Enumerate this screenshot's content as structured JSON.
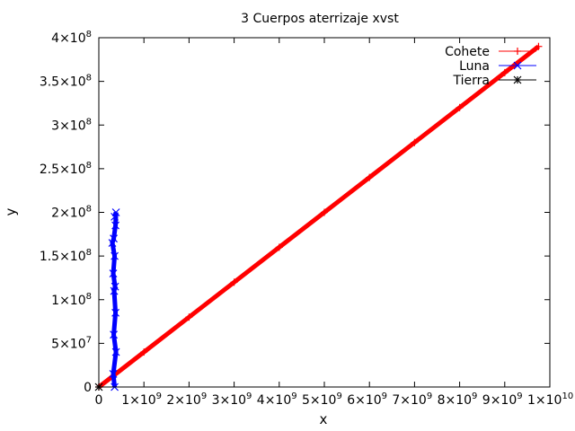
{
  "chart_data": {
    "type": "line",
    "title": "3 Cuerpos aterrizaje xvst",
    "xlabel": "x",
    "ylabel": "y",
    "xlim": [
      0,
      10000000000
    ],
    "ylim": [
      0,
      400000000
    ],
    "grid": false,
    "legend_position": "top-right",
    "x_ticks": [
      {
        "value": 0,
        "base": "0",
        "exp": ""
      },
      {
        "value": 1000000000,
        "base": "1×10",
        "exp": "9"
      },
      {
        "value": 2000000000,
        "base": "2×10",
        "exp": "9"
      },
      {
        "value": 3000000000,
        "base": "3×10",
        "exp": "9"
      },
      {
        "value": 4000000000,
        "base": "4×10",
        "exp": "9"
      },
      {
        "value": 5000000000,
        "base": "5×10",
        "exp": "9"
      },
      {
        "value": 6000000000,
        "base": "6×10",
        "exp": "9"
      },
      {
        "value": 7000000000,
        "base": "7×10",
        "exp": "9"
      },
      {
        "value": 8000000000,
        "base": "8×10",
        "exp": "9"
      },
      {
        "value": 9000000000,
        "base": "9×10",
        "exp": "9"
      },
      {
        "value": 10000000000,
        "base": "1×10",
        "exp": "10"
      }
    ],
    "y_ticks": [
      {
        "value": 0,
        "base": "0",
        "exp": ""
      },
      {
        "value": 50000000,
        "base": "5×10",
        "exp": "7"
      },
      {
        "value": 100000000,
        "base": "1×10",
        "exp": "8"
      },
      {
        "value": 150000000,
        "base": "1.5×10",
        "exp": "8"
      },
      {
        "value": 200000000,
        "base": "2×10",
        "exp": "8"
      },
      {
        "value": 250000000,
        "base": "2.5×10",
        "exp": "8"
      },
      {
        "value": 300000000,
        "base": "3×10",
        "exp": "8"
      },
      {
        "value": 350000000,
        "base": "3.5×10",
        "exp": "8"
      },
      {
        "value": 400000000,
        "base": "4×10",
        "exp": "8"
      }
    ],
    "series": [
      {
        "name": "Cohete",
        "color": "#ff0000",
        "marker": "plus",
        "x": [
          0,
          1000000000,
          2000000000,
          3000000000,
          4000000000,
          5000000000,
          6000000000,
          7000000000,
          8000000000,
          9000000000,
          9750000000
        ],
        "y": [
          0,
          40000000,
          80000000,
          120000000,
          160000000,
          200000000,
          240000000,
          280000000,
          320000000,
          360000000,
          390000000
        ]
      },
      {
        "name": "Luna",
        "color": "#0000ff",
        "marker": "x",
        "x": [
          350000000,
          320000000,
          380000000,
          330000000,
          370000000,
          340000000,
          360000000,
          320000000,
          350000000,
          300000000,
          330000000,
          370000000,
          380000000,
          350000000
        ],
        "y": [
          0,
          15000000,
          40000000,
          60000000,
          85000000,
          110000000,
          115000000,
          130000000,
          150000000,
          165000000,
          170000000,
          185000000,
          200000000,
          195000000
        ]
      },
      {
        "name": "Tierra",
        "color": "#000000",
        "marker": "star",
        "x": [
          0
        ],
        "y": [
          0
        ]
      }
    ]
  }
}
